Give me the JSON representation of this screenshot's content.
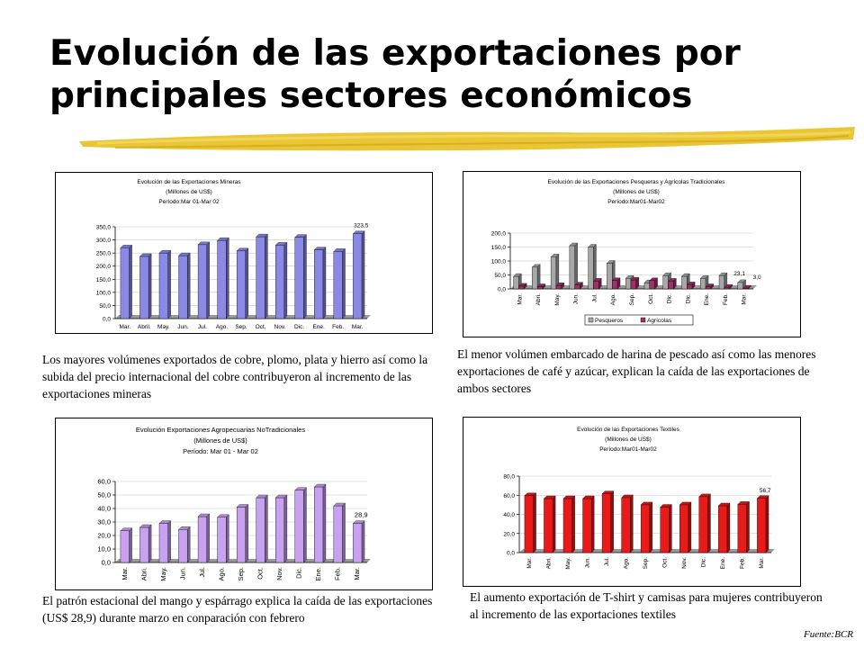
{
  "slide": {
    "title": "Evolución de las exportaciones por principales sectores económicos",
    "source": "Fuente:BCR",
    "accent_color": "#e8c020"
  },
  "captions": {
    "c1": "Los mayores volúmenes exportados de cobre, plomo, plata y hierro así como la subida del precio internacional del cobre contribuyeron al incremento de las exportaciones mineras",
    "c2": "El menor volúmen embarcado de harina de pescado así como las menores exportaciones de café y azúcar, explican la caída de las exportaciones de ambos sectores",
    "c3": "El patrón estacional del mango y espárrago explica la caída de las exportaciones (US$ 28,9) durante marzo en conparación con febrero",
    "c4": "El aumento exportación de T-shirt y camisas para mujeres contribuyeron al incremento de las exportaciones textiles"
  },
  "chart_data": [
    {
      "type": "bar",
      "title_lines": [
        "Evolución de las Exportaciones Mineras",
        "(Millones de US$)",
        "Período:Mar 01-Mar 02"
      ],
      "categories": [
        "Mar.",
        "Abril.",
        "May.",
        "Jun.",
        "Jul.",
        "Ago.",
        "Sep.",
        "Oct.",
        "Nov.",
        "Dic.",
        "Ene.",
        "Feb.",
        "Mar."
      ],
      "series": [
        {
          "values": [
            270,
            237,
            250,
            240,
            282,
            298,
            258,
            312,
            280,
            310,
            262,
            256,
            323.5
          ],
          "color": "#8a8ae6"
        }
      ],
      "y_ticks": [
        "0,0",
        "50,0",
        "100,0",
        "150,0",
        "200,0",
        "250,0",
        "300,0",
        "350,0"
      ],
      "ylim": [
        0,
        350
      ],
      "data_label": "323,5",
      "tick_rotation": "horizontal"
    },
    {
      "type": "bar",
      "title_lines": [
        "Evolución de las Exportaciones Pesqueras y Agrícolas Tradicionales",
        "(Millones de US$)",
        "Período:Mar01-Mar02"
      ],
      "categories": [
        "Mar.",
        "Abri.",
        "May.",
        "Jun.",
        "Jul.",
        "Ago.",
        "Sep.",
        "Oct.",
        "Dic.",
        "Dic.",
        "Ene.",
        "Feb.",
        "Mar."
      ],
      "series": [
        {
          "name": "Pesqueros",
          "values": [
            45,
            78,
            115,
            155,
            150,
            92,
            38,
            22,
            48,
            45,
            38,
            48,
            23.1
          ],
          "color": "#a8a8a8"
        },
        {
          "name": "Agrícolas",
          "values": [
            10,
            8,
            12,
            14,
            28,
            30,
            32,
            30,
            28,
            15,
            8,
            6,
            3.0
          ],
          "color": "#a0306a"
        }
      ],
      "y_ticks": [
        "0,0",
        "50,0",
        "100,0",
        "150,0",
        "200,0"
      ],
      "ylim": [
        0,
        200
      ],
      "data_labels": [
        "23,1",
        "3,0"
      ],
      "tick_rotation": "vertical"
    },
    {
      "type": "bar",
      "title_lines": [
        "Evolución Exportaciones Agropecuarias NoTradicionales",
        "(Millones de US$)",
        "Período: Mar 01 - Mar 02"
      ],
      "categories": [
        "Mar.",
        "Abri.",
        "May.",
        "Jun.",
        "Jul.",
        "Ago.",
        "Sep.",
        "Oct.",
        "Nov.",
        "Dic.",
        "Ene.",
        "Feb.",
        "Mar."
      ],
      "series": [
        {
          "values": [
            23.5,
            26,
            29,
            24.5,
            34,
            33.5,
            41,
            48,
            48,
            53.5,
            56,
            42,
            28.9
          ],
          "color": "#c8a2f0"
        }
      ],
      "y_ticks": [
        "0,0",
        "10,0",
        "20,0",
        "30,0",
        "40,0",
        "50,0",
        "60,0"
      ],
      "ylim": [
        0,
        60
      ],
      "data_label": "28,9",
      "tick_rotation": "vertical"
    },
    {
      "type": "bar",
      "title_lines": [
        "Evolución de las Exportaciones Textiles",
        "(Millones de US$)",
        "Período:Mar01-Mar02"
      ],
      "categories": [
        "Mar.",
        "Abri.",
        "May.",
        "Jun.",
        "Jul.",
        "Ago.",
        "Sep.",
        "Oct.",
        "Nov.",
        "Dic.",
        "Ene.",
        "Feb.",
        "Mar."
      ],
      "series": [
        {
          "values": [
            59.5,
            56.5,
            56.5,
            56.5,
            61.5,
            57.5,
            50,
            47.5,
            50,
            58.5,
            49,
            50.5,
            56.7
          ],
          "color": "#e81a1a"
        }
      ],
      "y_ticks": [
        "0,0",
        "20,0",
        "40,0",
        "60,0",
        "80,0"
      ],
      "ylim": [
        0,
        80
      ],
      "data_label": "56,7",
      "tick_rotation": "vertical"
    }
  ]
}
